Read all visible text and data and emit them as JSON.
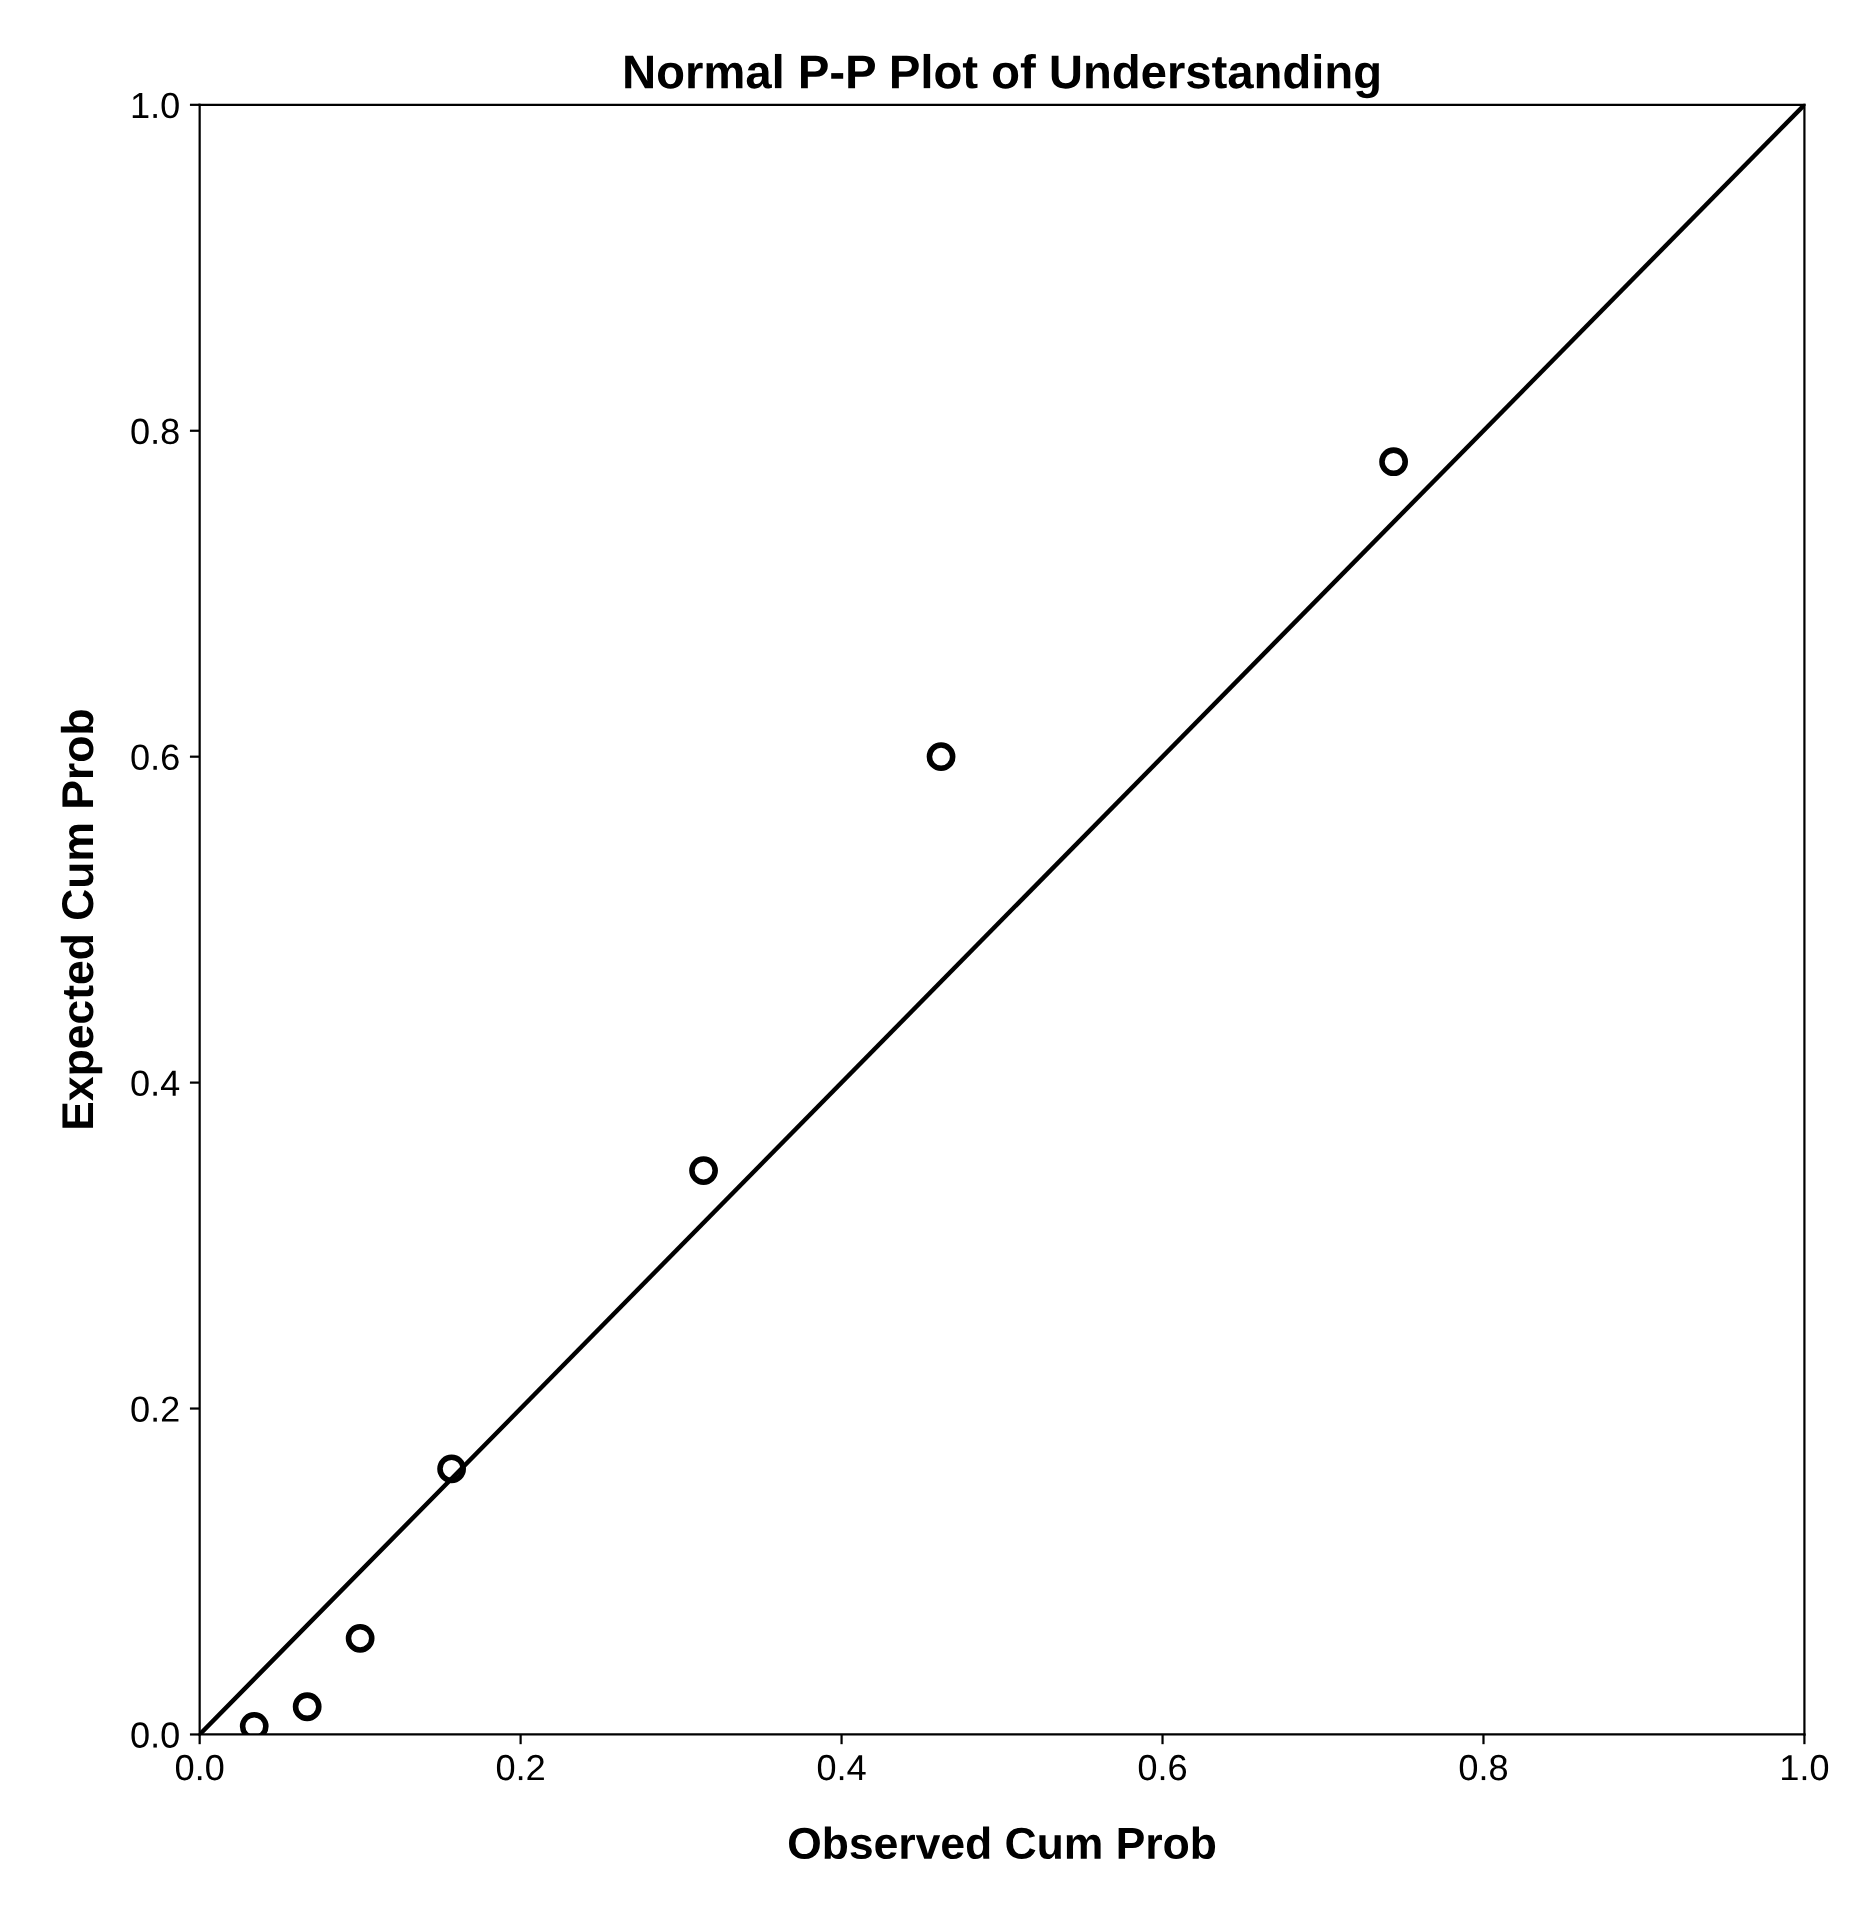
{
  "chart_data": {
    "type": "scatter",
    "title": "Normal P-P Plot of Understanding",
    "xlabel": "Observed Cum Prob",
    "ylabel": "Expected Cum Prob",
    "series": [
      {
        "color": "#000000",
        "marker": "circle",
        "x": [
          0.034,
          0.067,
          0.1,
          0.157,
          0.314,
          0.462,
          0.744
        ],
        "values": [
          0.005,
          0.017,
          0.059,
          0.163,
          0.346,
          0.6,
          0.781
        ]
      },
      {
        "type": "line",
        "color": "#000000",
        "marker": "none",
        "line_style": "solid",
        "x": [
          0,
          1
        ],
        "values": [
          0,
          1
        ]
      }
    ],
    "xlim": [
      0,
      1
    ],
    "ylim": [
      0,
      1
    ],
    "xticks": [
      {
        "value": 0,
        "label": "0.0"
      },
      0.2,
      0.4,
      0.6,
      0.8,
      {
        "value": 1,
        "label": "1.0"
      }
    ],
    "yticks": [
      {
        "value": 0,
        "label": "0.0"
      },
      0.2,
      0.4,
      0.6,
      0.8,
      {
        "value": 1,
        "label": "1.0"
      }
    ],
    "grid": false,
    "legend": false
  }
}
